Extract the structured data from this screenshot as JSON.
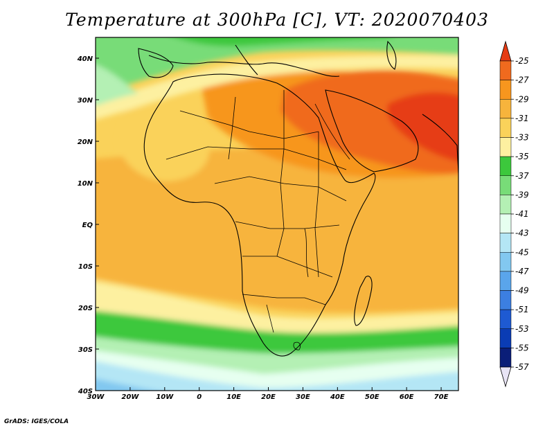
{
  "title": "Temperature at 300hPa [C], VT: 2020070403",
  "credit": "GrADS: IGES/COLA",
  "map": {
    "lon_range": [
      -30,
      75
    ],
    "lat_range": [
      -40,
      45
    ],
    "lon_ticks": [
      {
        "value": -30,
        "label": "30W"
      },
      {
        "value": -20,
        "label": "20W"
      },
      {
        "value": -10,
        "label": "10W"
      },
      {
        "value": 0,
        "label": "0"
      },
      {
        "value": 10,
        "label": "10E"
      },
      {
        "value": 20,
        "label": "20E"
      },
      {
        "value": 30,
        "label": "30E"
      },
      {
        "value": 40,
        "label": "40E"
      },
      {
        "value": 50,
        "label": "50E"
      },
      {
        "value": 60,
        "label": "60E"
      },
      {
        "value": 70,
        "label": "70E"
      }
    ],
    "lat_ticks": [
      {
        "value": 40,
        "label": "40N"
      },
      {
        "value": 30,
        "label": "30N"
      },
      {
        "value": 20,
        "label": "20N"
      },
      {
        "value": 10,
        "label": "10N"
      },
      {
        "value": 0,
        "label": "EQ"
      },
      {
        "value": -10,
        "label": "10S"
      },
      {
        "value": -20,
        "label": "20S"
      },
      {
        "value": -30,
        "label": "30S"
      },
      {
        "value": -40,
        "label": "40S"
      }
    ]
  },
  "colorbar": {
    "labels": [
      "-25",
      "-27",
      "-29",
      "-31",
      "-33",
      "-35",
      "-37",
      "-39",
      "-41",
      "-43",
      "-45",
      "-47",
      "-49",
      "-51",
      "-53",
      "-55",
      "-57"
    ],
    "colors": [
      "#e63c14",
      "#f06a1e",
      "#f7961e",
      "#f7b43c",
      "#fad25a",
      "#fdf0a0",
      "#3cc83c",
      "#78dc78",
      "#b4f0b4",
      "#e6fff0",
      "#b4e6f5",
      "#82c8f0",
      "#5aa5eb",
      "#3c7fe1",
      "#1e5ad2",
      "#0a3cb4",
      "#0a1e78"
    ],
    "over_color": "#e63c14",
    "under_color": "#e8e4f5"
  },
  "temperature_field": [
    {
      "value": -39,
      "color": "#78dc78",
      "region": "north-edge"
    },
    {
      "value": -35,
      "color": "#fdf0a0",
      "region": "mediterranean"
    },
    {
      "value": -29,
      "color": "#f7961e",
      "region": "sahara"
    },
    {
      "value": -27,
      "color": "#f06a1e",
      "region": "middle-east"
    },
    {
      "value": -25,
      "color": "#e63c14",
      "region": "arabia-india"
    },
    {
      "value": -31,
      "color": "#f7b43c",
      "region": "tropics"
    },
    {
      "value": -33,
      "color": "#fad25a",
      "region": "southern-subtropics"
    },
    {
      "value": -37,
      "color": "#3cc83c",
      "region": "southern-jet"
    },
    {
      "value": -43,
      "color": "#e6fff0",
      "region": "southern-ocean"
    },
    {
      "value": -47,
      "color": "#82c8f0",
      "region": "far-south"
    }
  ]
}
